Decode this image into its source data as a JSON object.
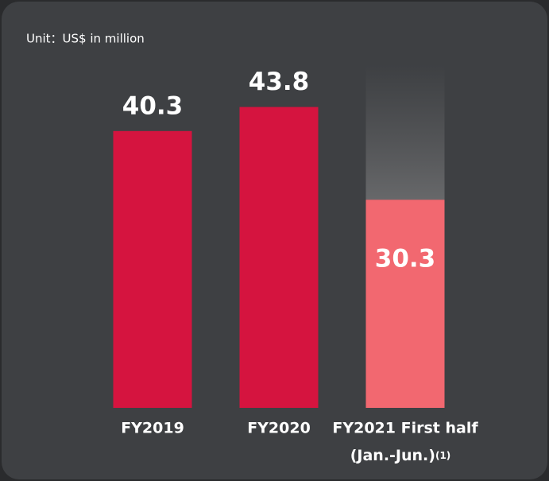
{
  "chart_data": {
    "type": "bar",
    "unit_label": "Unit：US$  in million",
    "categories": [
      "FY2019",
      "FY2020",
      [
        "FY2021 First half",
        "(Jan.-Jun.)"
      ]
    ],
    "footnote_marker": "(1)",
    "values": [
      40.3,
      43.8,
      30.3
    ],
    "colors": [
      "#d5143f",
      "#d5143f",
      "#f26870"
    ],
    "ylim": [
      0,
      50
    ]
  }
}
